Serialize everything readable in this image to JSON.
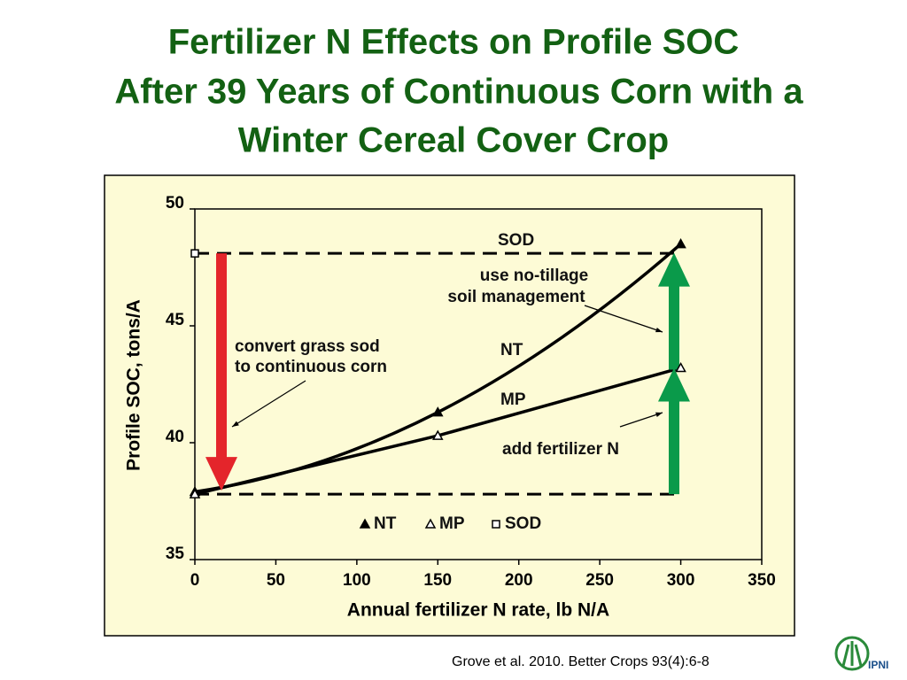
{
  "chart_data": {
    "type": "scatter",
    "title": [
      "Fertilizer N Effects on Profile  SOC",
      "After 39 Years of Continuous Corn with a",
      "Winter Cereal Cover Crop"
    ],
    "x_label": "Annual fertilizer N rate, lb N/A",
    "y_label": "Profile SOC, tons/A",
    "xlim": [
      0,
      350
    ],
    "xticks": [
      0,
      50,
      100,
      150,
      200,
      250,
      300,
      350
    ],
    "ylim": [
      35,
      50
    ],
    "yticks": [
      35,
      40,
      45,
      50
    ],
    "series": [
      {
        "name": "NT",
        "color": "#000000",
        "marker": "filled-triangle",
        "x": [
          0,
          150,
          300
        ],
        "values": [
          37.9,
          41.3,
          48.5
        ],
        "fit": "curve"
      },
      {
        "name": "MP",
        "color": "#000000",
        "marker": "open-triangle",
        "x": [
          0,
          150,
          300
        ],
        "values": [
          37.8,
          40.3,
          43.2
        ],
        "fit": "line"
      },
      {
        "name": "SOD",
        "color": "#000000",
        "marker": "open-square",
        "x": [
          0
        ],
        "values": [
          48.1
        ]
      }
    ],
    "annotations": {
      "soil": [
        "use no-tillage",
        "soil management"
      ],
      "sod": [
        "convert grass sod",
        "to continuous corn"
      ],
      "fert": "add fertilizer N"
    },
    "citation": "Grove et al. 2010. Better Crops 93(4):6-8",
    "logo": "IPNI"
  }
}
